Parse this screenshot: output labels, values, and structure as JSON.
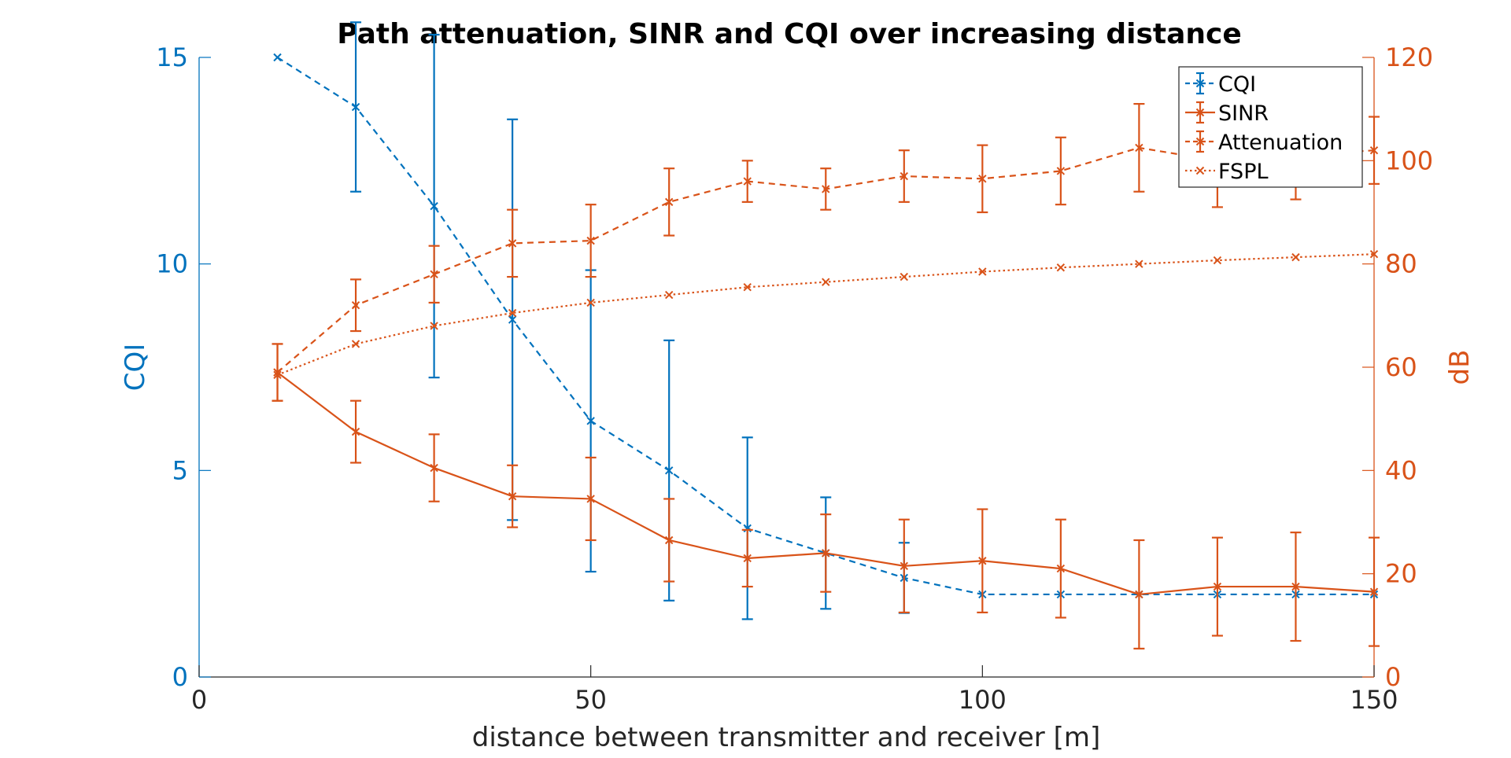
{
  "chart_data": {
    "type": "line",
    "title": "Path attenuation, SINR and CQI over increasing distance",
    "xlabel": "distance between transmitter and receiver [m]",
    "ylabel_left": "CQI",
    "ylabel_right": "dB",
    "xlim": [
      0,
      150
    ],
    "ylim_left": [
      0,
      15
    ],
    "ylim_right": [
      0,
      120
    ],
    "x_ticks": [
      "0",
      "50",
      "100",
      "150"
    ],
    "y_left_ticks": [
      "0",
      "5",
      "10",
      "15"
    ],
    "y_right_ticks": [
      "0",
      "20",
      "40",
      "60",
      "80",
      "100",
      "120"
    ],
    "grid": false,
    "legend_position": "top-right",
    "colors": {
      "cqi": "#0072BD",
      "db": "#D95319"
    },
    "x": [
      10,
      20,
      30,
      40,
      50,
      60,
      70,
      80,
      90,
      100,
      110,
      120,
      130,
      140,
      150
    ],
    "series": [
      {
        "name": "CQI",
        "axis": "left",
        "style": "dashed",
        "values": [
          15,
          13.8,
          11.4,
          8.65,
          6.2,
          5.0,
          3.6,
          3.0,
          2.4,
          2.0,
          2.0,
          2.0,
          2.0,
          2.0,
          2.0
        ],
        "error": [
          0,
          2.05,
          4.15,
          4.85,
          3.65,
          3.15,
          2.2,
          1.35,
          0.85,
          0,
          0,
          0,
          0,
          0,
          0
        ]
      },
      {
        "name": "SINR",
        "axis": "right",
        "style": "solid",
        "values": [
          59,
          47.5,
          40.5,
          35,
          34.5,
          26.5,
          23,
          24,
          21.5,
          22.5,
          21,
          16,
          17.5,
          17.5,
          16.5
        ],
        "error": [
          5.5,
          6,
          6.5,
          6,
          8,
          8,
          5.5,
          7.5,
          9,
          10,
          9.5,
          10.5,
          9.5,
          10.5,
          10.5
        ]
      },
      {
        "name": "Attenuation",
        "axis": "right",
        "style": "dashed",
        "values": [
          59,
          72,
          78,
          84,
          84.5,
          92,
          96,
          94.5,
          97,
          96.5,
          98,
          102.5,
          100,
          101,
          102
        ],
        "error": [
          5.5,
          5,
          5.5,
          6.5,
          7,
          6.5,
          4,
          4,
          5,
          6.5,
          6.5,
          8.5,
          9,
          8.5,
          6.5
        ]
      },
      {
        "name": "FSPL",
        "axis": "right",
        "style": "dotted",
        "values": [
          58.5,
          64.5,
          68,
          70.5,
          72.5,
          74,
          75.5,
          76.5,
          77.5,
          78.5,
          79.3,
          80,
          80.7,
          81.3,
          81.9
        ],
        "error": null
      }
    ]
  }
}
